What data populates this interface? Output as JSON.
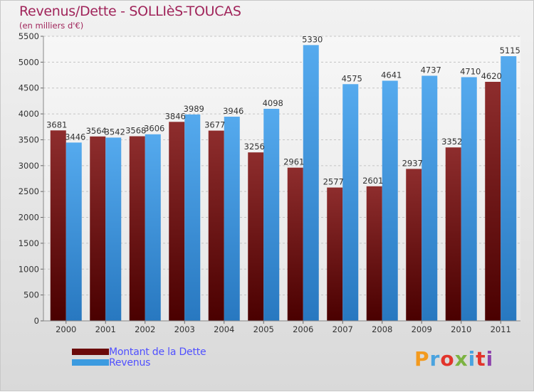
{
  "header": {
    "title": "Revenus/Dette - SOLLIèS-TOUCAS",
    "subtitle": "(en milliers d'€)"
  },
  "legend": {
    "items": [
      {
        "label": "Montant de la Dette",
        "color": "#6b0a0a"
      },
      {
        "label": "Revenus",
        "color": "#3c9be0"
      }
    ]
  },
  "logo": {
    "text": "Proxiti",
    "colors": [
      "#f39a1e",
      "#4aa3df",
      "#e2342b",
      "#7cb342",
      "#4aa3df",
      "#e2342b",
      "#8e44ad"
    ]
  },
  "chart_data": {
    "type": "bar",
    "categories": [
      "2000",
      "2001",
      "2002",
      "2003",
      "2004",
      "2005",
      "2006",
      "2007",
      "2008",
      "2009",
      "2010",
      "2011"
    ],
    "series": [
      {
        "name": "Montant de la Dette",
        "values": [
          3681,
          3564,
          3568,
          3846,
          3677,
          3256,
          2961,
          2577,
          2601,
          2937,
          3352,
          4620
        ],
        "labels": [
          "3681",
          "3564",
          "3568",
          "3846",
          "3677",
          "3256",
          "2961",
          "2577",
          "2601",
          "2937",
          "3352",
          "4620"
        ],
        "color": "#7a1a1a"
      },
      {
        "name": "Revenus",
        "values": [
          3446,
          3542,
          3606,
          3989,
          3946,
          4098,
          5330,
          4575,
          4641,
          4737,
          4710,
          5115
        ],
        "labels": [
          "3446",
          "3542",
          "3606",
          "3989",
          "3946",
          "4098",
          "5330",
          "4575",
          "4641",
          "4737",
          "4710",
          "5115"
        ],
        "color": "#3c9be0"
      }
    ],
    "ylim": [
      0,
      5500
    ],
    "yticks": [
      0,
      500,
      1000,
      1500,
      2000,
      2500,
      3000,
      3500,
      4000,
      4500,
      5000,
      5500
    ],
    "ytick_labels": [
      "0",
      "500",
      "1000",
      "1500",
      "2000",
      "2500",
      "3000",
      "3500",
      "4000",
      "4500",
      "5000",
      "5500"
    ],
    "grid": true,
    "xlabel": "",
    "ylabel": ""
  }
}
